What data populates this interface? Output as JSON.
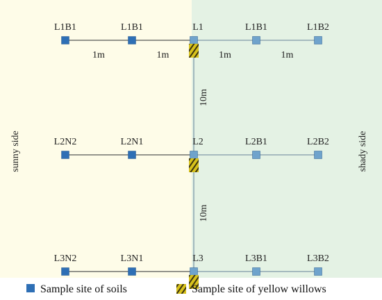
{
  "sides": {
    "sunny": "sunny side",
    "shady": "shady side"
  },
  "rows": [
    {
      "id": "L1",
      "nodes": [
        {
          "label": "L1B1",
          "type": "soil"
        },
        {
          "label": "L1B1",
          "type": "soil"
        },
        {
          "label": "L1",
          "type": "soil",
          "willow": true
        },
        {
          "label": "L1B1",
          "type": "soil"
        },
        {
          "label": "L1B2",
          "type": "soil"
        }
      ],
      "gaps": [
        "1m",
        "1m",
        "1m",
        "1m"
      ]
    },
    {
      "id": "L2",
      "nodes": [
        {
          "label": "L2N2",
          "type": "soil"
        },
        {
          "label": "L2N1",
          "type": "soil"
        },
        {
          "label": "L2",
          "type": "soil",
          "willow": true
        },
        {
          "label": "L2B1",
          "type": "soil"
        },
        {
          "label": "L2B2",
          "type": "soil"
        }
      ],
      "gaps": []
    },
    {
      "id": "L3",
      "nodes": [
        {
          "label": "L3N2",
          "type": "soil"
        },
        {
          "label": "L3N1",
          "type": "soil"
        },
        {
          "label": "L3",
          "type": "soil",
          "willow": true
        },
        {
          "label": "L3B1",
          "type": "soil"
        },
        {
          "label": "L3B2",
          "type": "soil"
        }
      ],
      "gaps": []
    }
  ],
  "vertical_distances": [
    "10m",
    "10m"
  ],
  "legend": {
    "soil": "Sample site of soils",
    "willow": "Sample site of yellow willows"
  },
  "colors": {
    "sunny_bg": "#fefce8",
    "shady_bg": "#e4f2e4",
    "soil_dark": "#2e6fb5",
    "soil_light": "#6fa3cc",
    "line_sunny": "#555555",
    "line_shady": "#7f99a8",
    "willow": "#c8b21a"
  }
}
